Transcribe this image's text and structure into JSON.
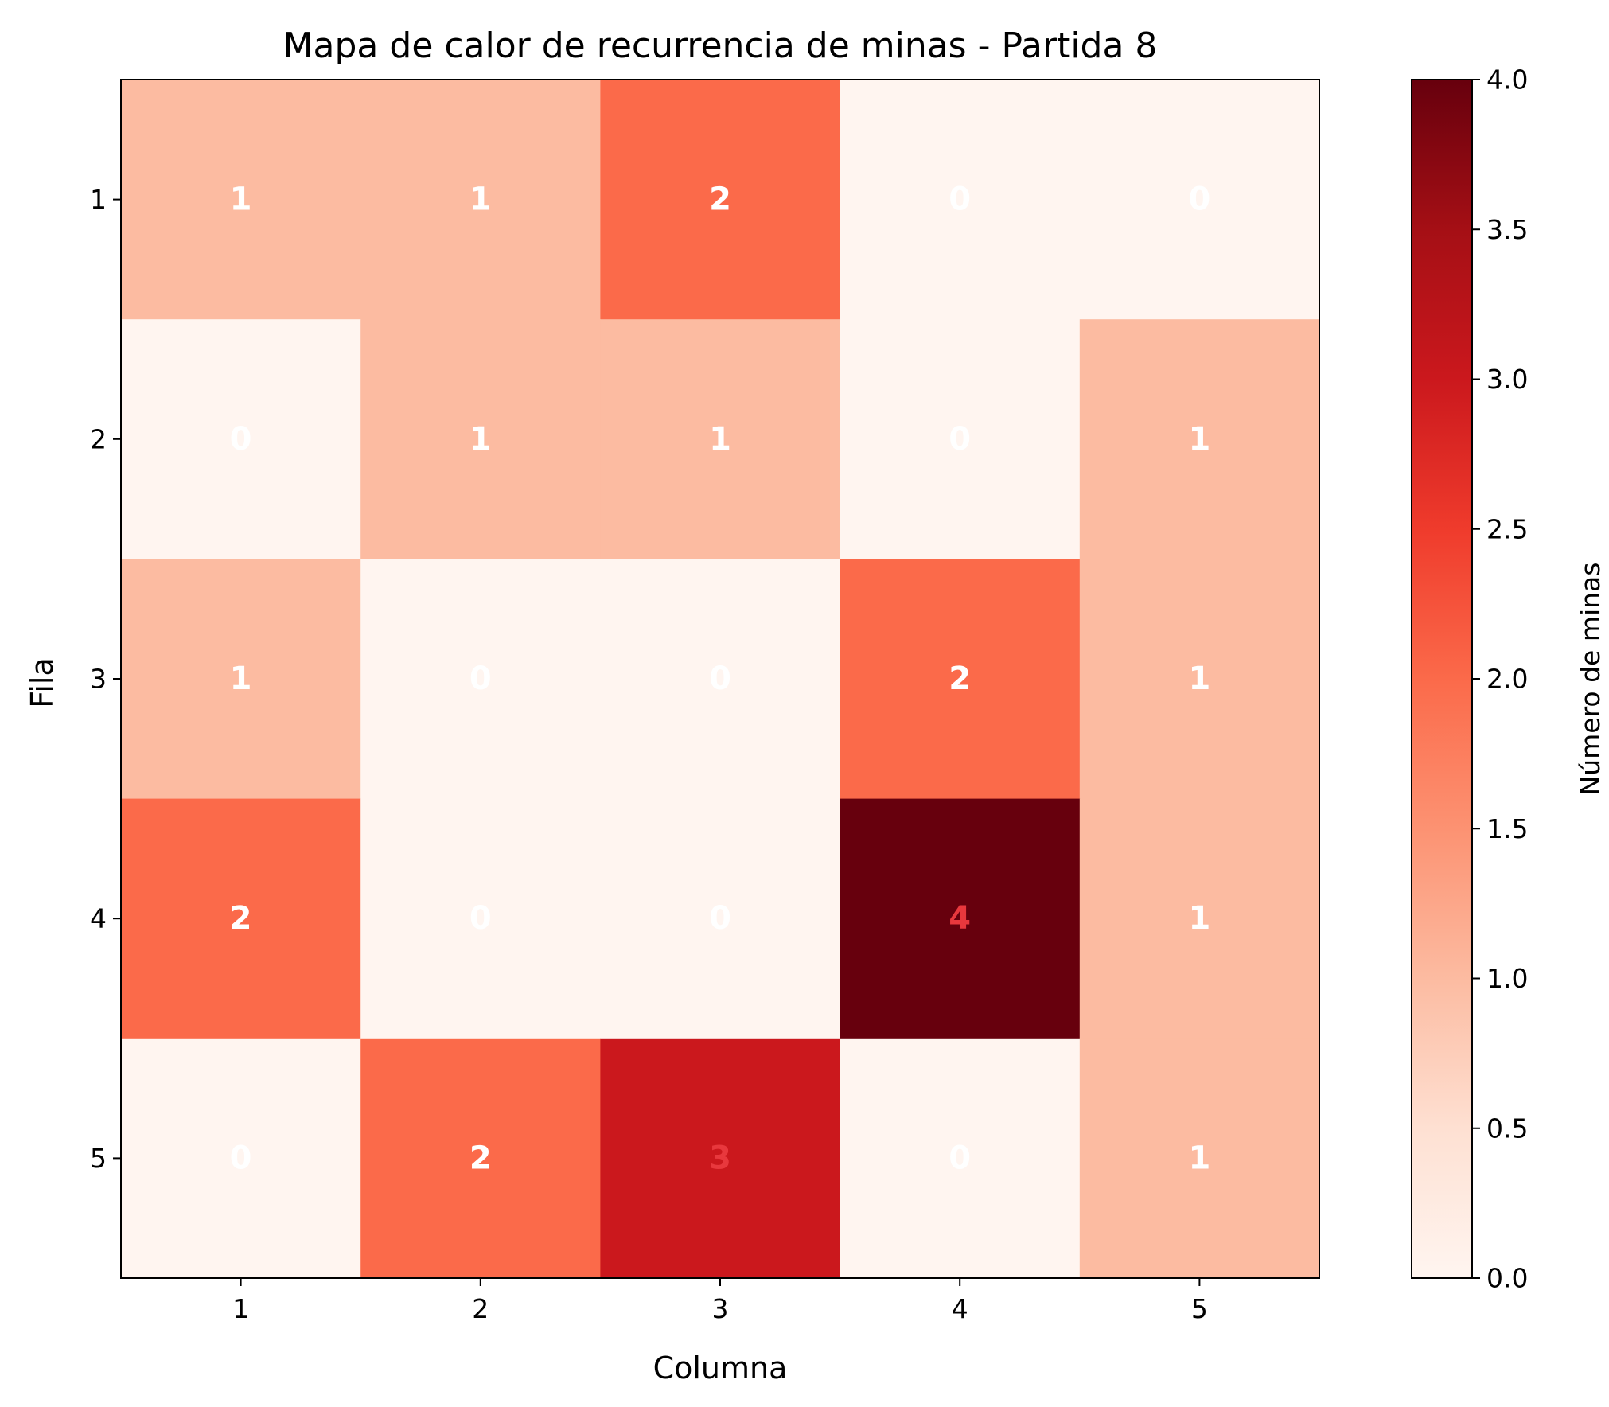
{
  "chart_data": {
    "type": "heatmap",
    "title": "Mapa de calor de recurrencia de minas - Partida 8",
    "xlabel": "Columna",
    "ylabel": "Fila",
    "x_categories": [
      "1",
      "2",
      "3",
      "4",
      "5"
    ],
    "y_categories": [
      "1",
      "2",
      "3",
      "4",
      "5"
    ],
    "values": [
      [
        1,
        1,
        2,
        0,
        0
      ],
      [
        0,
        1,
        1,
        0,
        1
      ],
      [
        1,
        0,
        0,
        2,
        1
      ],
      [
        2,
        0,
        0,
        4,
        1
      ],
      [
        0,
        2,
        3,
        0,
        1
      ]
    ],
    "colormap": "Reds",
    "vmin": 0,
    "vmax": 4,
    "colorbar": {
      "label": "Número de minas",
      "ticks": [
        "0.0",
        "0.5",
        "1.0",
        "1.5",
        "2.0",
        "2.5",
        "3.0",
        "3.5",
        "4.0"
      ],
      "tick_values": [
        0,
        0.5,
        1,
        1.5,
        2,
        2.5,
        3,
        3.5,
        4
      ]
    },
    "colors": {
      "0": "#fff5f0",
      "1": "#fcbba1",
      "2": "#fb6a4a",
      "3": "#cb181d",
      "4": "#67000d"
    },
    "annotation_colors": {
      "default": "#ffffff",
      "high": "#e8383d"
    },
    "grid": false
  }
}
